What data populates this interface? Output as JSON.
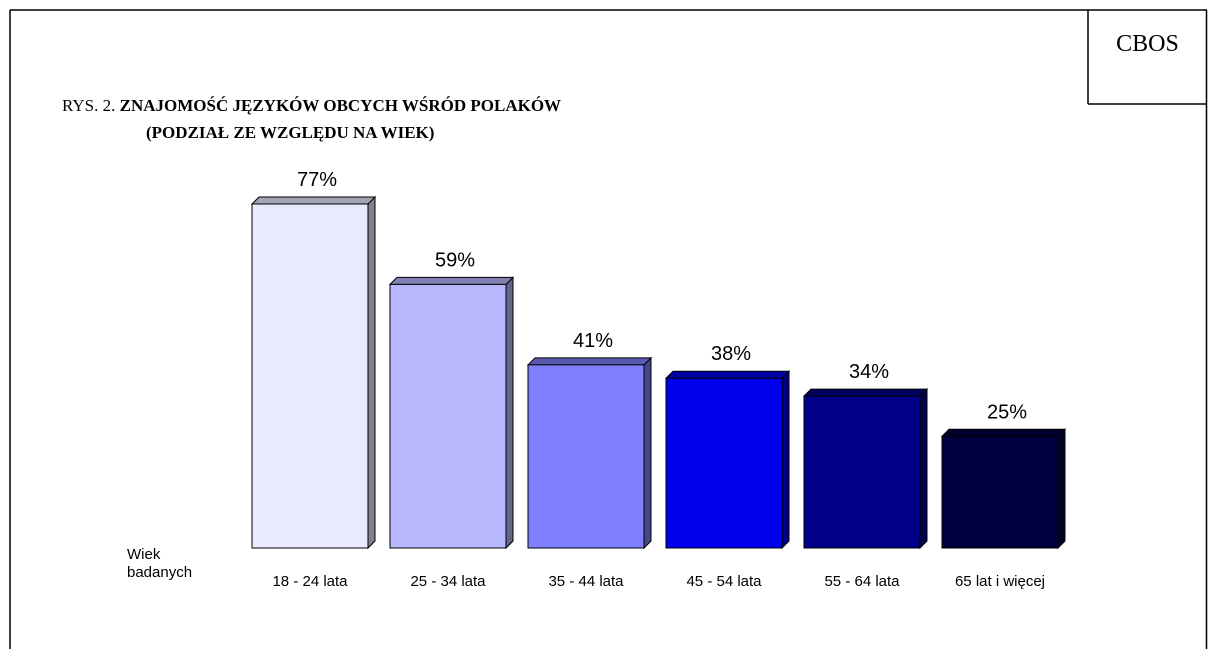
{
  "brand": "CBOS",
  "chart_data": {
    "type": "bar3d",
    "figure_label": "RYS. 2.",
    "title": "ZNAJOMOŚĆ JĘZYKÓW OBCYCH WŚRÓD POLAKÓW",
    "subtitle": "(PODZIAŁ ZE WZGLĘDU NA WIEK)",
    "x_label": "Wiek badanych",
    "categories": [
      "18 - 24 lata",
      "25 - 34 lata",
      "35 - 44 lata",
      "45 - 54 lata",
      "55 - 64 lata",
      "65 lat i więcej"
    ],
    "values": [
      77,
      59,
      41,
      38,
      34,
      25
    ],
    "value_labels": [
      "77%",
      "59%",
      "41%",
      "38%",
      "34%",
      "25%"
    ],
    "colors": [
      "#eaeaff",
      "#b8b8ff",
      "#8080ff",
      "#0000ee",
      "#000088",
      "#000040"
    ]
  }
}
